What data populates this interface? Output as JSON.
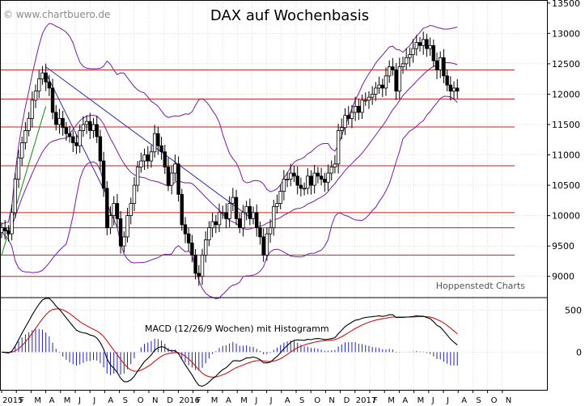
{
  "watermark": "© www.chartbuero.de",
  "credit": "Hoppenstedt Charts",
  "colors": {
    "background": "#ffffff",
    "grid": "#c8c8c8",
    "candle": "#000000",
    "bollinger": "#7a1aa8",
    "resistance": "#c81e1e",
    "trend_blue": "#2a2ab8",
    "trend_green": "#1a8a1a",
    "macd": "#000000",
    "signal": "#d41414",
    "histogram": "#2020c8"
  },
  "chart_data": [
    {
      "type": "candlestick",
      "title": "DAX auf Wochenbasis",
      "ylim": [
        8650,
        13550
      ],
      "y_ticks": [
        9000,
        9500,
        10000,
        10500,
        11000,
        11500,
        12000,
        12500,
        13000,
        13500
      ],
      "x_months": [
        "2015",
        "F",
        "M",
        "A",
        "M",
        "J",
        "J",
        "A",
        "S",
        "O",
        "N",
        "D",
        "2016",
        "F",
        "M",
        "A",
        "M",
        "J",
        "J",
        "A",
        "S",
        "O",
        "N",
        "D",
        "2017",
        "F",
        "M",
        "A",
        "M",
        "J",
        "J",
        "A",
        "S",
        "O",
        "N"
      ],
      "x_months_start": "2015-01",
      "horizontal_levels": [
        12400,
        11920,
        11460,
        10820,
        10050,
        9800,
        9350,
        9000
      ],
      "trendlines": [
        {
          "color": "blue",
          "points": [
            [
              "2015-04",
              12450
            ],
            [
              "2016-06",
              9950
            ]
          ]
        },
        {
          "color": "blue",
          "points": [
            [
              "2015-04",
              12350
            ],
            [
              "2015-08",
              10400
            ]
          ]
        },
        {
          "color": "green",
          "points": [
            [
              "2015-01",
              9350
            ],
            [
              "2015-04",
              11800
            ]
          ]
        }
      ],
      "close_series_weekly": [
        9800,
        9750,
        9700,
        10050,
        10600,
        10950,
        11200,
        11400,
        11600,
        11900,
        12050,
        12250,
        12350,
        12200,
        12100,
        11700,
        11500,
        11600,
        11450,
        11350,
        11300,
        11200,
        11150,
        11400,
        11500,
        11550,
        11400,
        11500,
        11300,
        10900,
        10450,
        9800,
        10000,
        10200,
        9950,
        9500,
        9650,
        10000,
        10200,
        10500,
        10800,
        10900,
        11000,
        10900,
        11050,
        11350,
        11150,
        11050,
        10800,
        10500,
        10700,
        10850,
        10350,
        9850,
        9700,
        9550,
        9350,
        9050,
        9000,
        9350,
        9600,
        9800,
        9900,
        9850,
        10050,
        10050,
        9950,
        10200,
        10300,
        9950,
        9800,
        10050,
        10150,
        9950,
        10050,
        9800,
        9650,
        9350,
        9700,
        9800,
        10150,
        10200,
        10400,
        10600,
        10600,
        10700,
        10650,
        10500,
        10450,
        10450,
        10650,
        10500,
        10700,
        10650,
        10600,
        10550,
        10700,
        10800,
        10850,
        11400,
        11450,
        11650,
        11600,
        11700,
        11800,
        11700,
        11900,
        11900,
        11950,
        12000,
        12100,
        12150,
        12100,
        12300,
        12450,
        12400,
        12050,
        12450,
        12500,
        12600,
        12650,
        12750,
        12850,
        12800,
        12900,
        12750,
        12800,
        12550,
        12400,
        12600,
        12300,
        12150,
        12050,
        12100,
        12050
      ],
      "bollinger": {
        "period": 20,
        "std_dev": 2
      }
    },
    {
      "type": "line",
      "title": "MACD (12/26/9 Wochen) mit Histogramm",
      "ylim": [
        -450,
        650
      ],
      "y_ticks": [
        0,
        500
      ],
      "series": [
        {
          "name": "MACD",
          "color": "black"
        },
        {
          "name": "Signal",
          "color": "red"
        },
        {
          "name": "Histogramm",
          "color": "blue"
        }
      ]
    }
  ]
}
